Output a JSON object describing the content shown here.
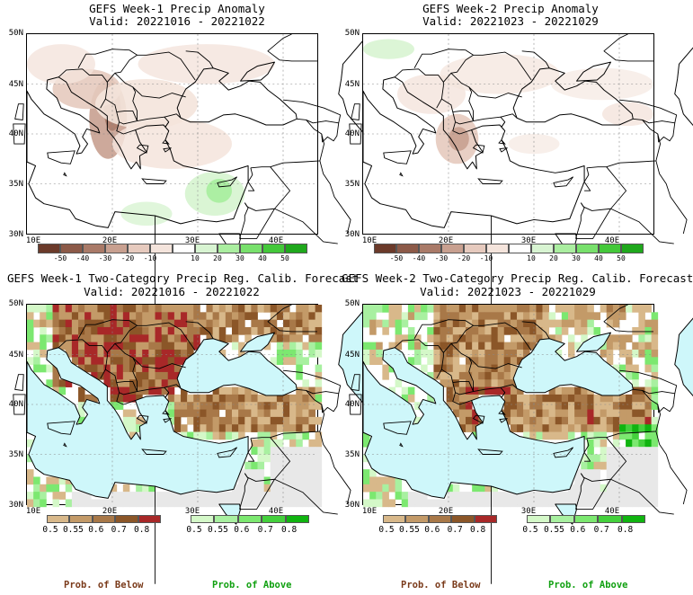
{
  "panels": {
    "p1": {
      "title": "GEFS Week-1 Precip Anomaly",
      "valid": "Valid: 20221016 - 20221022"
    },
    "p2": {
      "title": "GEFS Week-2 Precip Anomaly",
      "valid": "Valid: 20221023 - 20221029"
    },
    "p3": {
      "title": "GEFS Week-1 Two-Category Precip Reg. Calib. Forecast",
      "valid": "Valid: 20221016 - 20221022"
    },
    "p4": {
      "title": "GEFS Week-2 Two-Category Precip Reg. Calib. Forecast",
      "valid": "Valid: 20221023 - 20221029"
    }
  },
  "axes": {
    "lat_labels": [
      "50N",
      "45N",
      "40N",
      "35N",
      "30N"
    ],
    "lon_labels": [
      "10E",
      "20E",
      "30E",
      "40E"
    ]
  },
  "anomaly_colorbar": {
    "labels": [
      "-50",
      "-40",
      "-30",
      "-20",
      "-10",
      "10",
      "20",
      "30",
      "40",
      "50"
    ],
    "colors": [
      "#6b3a2a",
      "#8c5a48",
      "#a97a68",
      "#c8a090",
      "#e6cabe",
      "#f4e4dc",
      "#ffffff",
      "#d8f4d2",
      "#aaeea0",
      "#78e06c",
      "#44c83a",
      "#1fa81c"
    ]
  },
  "prob_colorbar": {
    "below_labels": [
      "0.5",
      "0.55",
      "0.6",
      "0.7",
      "0.8"
    ],
    "above_labels": [
      "0.5",
      "0.55",
      "0.6",
      "0.7",
      "0.8"
    ],
    "below_colors": [
      "#d8b88a",
      "#c39a68",
      "#a87848",
      "#8b5628",
      "#a82828"
    ],
    "above_colors": [
      "#d4f8c8",
      "#a8f0a0",
      "#7ce870",
      "#44d03c",
      "#10b410"
    ]
  },
  "footer": {
    "below": "Prob. of Below",
    "above": "Prob. of Above",
    "below_color": "#7a3a1a",
    "above_color": "#10a010"
  },
  "map_colors": {
    "sea": "#cef7fa",
    "no_data": "#e8e8e8",
    "land_neutral": "#ffffff"
  }
}
